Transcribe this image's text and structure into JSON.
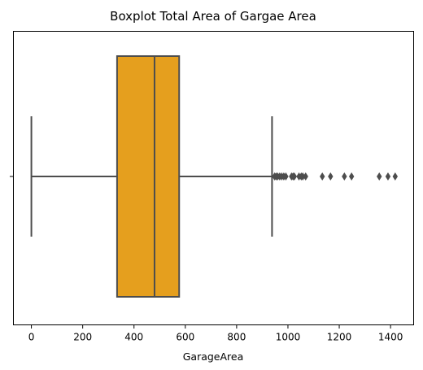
{
  "chart_data": {
    "type": "box",
    "orientation": "horizontal",
    "title": "Boxplot Total Area of Gargae Area",
    "xlabel": "GarageArea",
    "ylabel": "",
    "xlim": [
      -70,
      1490
    ],
    "xticks": [
      0,
      200,
      400,
      600,
      800,
      1000,
      1200,
      1400
    ],
    "xtick_labels": [
      "0",
      "200",
      "400",
      "600",
      "800",
      "1000",
      "1200",
      "1400"
    ],
    "grid": false,
    "box": {
      "whisker_low": 0,
      "q1": 334,
      "median": 480,
      "q3": 576,
      "whisker_high": 938
    },
    "outliers": [
      948,
      954,
      960,
      968,
      976,
      984,
      992,
      1014,
      1020,
      1025,
      1043,
      1052,
      1058,
      1069,
      1134,
      1166,
      1220,
      1248,
      1356,
      1390,
      1418
    ],
    "colors": {
      "box_fill": "#E59F1E",
      "line": "#4D4D4D",
      "outlier": "#4D4D4D",
      "axes": "#000000"
    }
  }
}
